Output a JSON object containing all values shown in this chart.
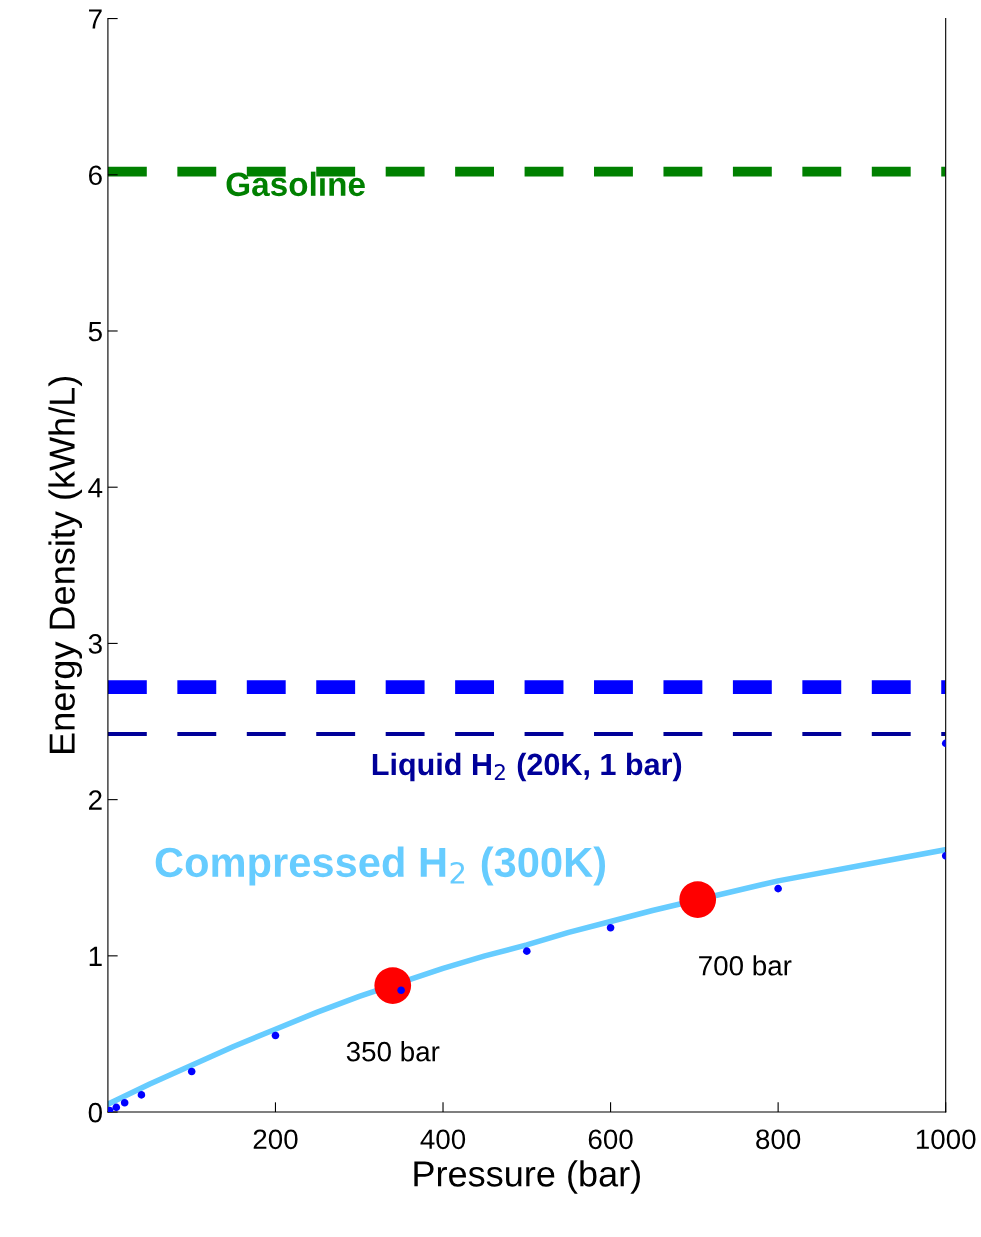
{
  "chart_data": {
    "type": "line",
    "xlabel": "Pressure (bar)",
    "ylabel": "Energy Density (kWh/L)",
    "xlim": [
      0,
      1000
    ],
    "xticks": [
      200,
      400,
      600,
      800,
      1000
    ],
    "ylim": [
      0,
      7
    ],
    "yticks": [
      0,
      1,
      2,
      3,
      4,
      5,
      6,
      7
    ],
    "grid": false,
    "legend": false,
    "series": [
      {
        "name": "Compressed H$_{2}$ (300K)",
        "color": "#66ccff",
        "marker": "none",
        "line_style": "solid",
        "x": [
          0,
          50,
          100,
          150,
          200,
          250,
          300,
          400,
          450,
          500,
          550,
          600,
          650,
          800,
          900,
          1000
        ],
        "values": [
          0.05,
          0.18,
          0.3,
          0.42,
          0.53,
          0.64,
          0.74,
          0.92,
          1.0,
          1.07,
          1.15,
          1.22,
          1.29,
          1.48,
          1.58,
          1.68
        ]
      },
      {
        "type": "scatter",
        "color": "#0000ff",
        "marker": "circle",
        "x": [
          2,
          10,
          20,
          40,
          100,
          200,
          350,
          500,
          600,
          800,
          1000,
          1000
        ],
        "values": [
          0.01,
          0.03,
          0.06,
          0.11,
          0.26,
          0.49,
          0.78,
          1.03,
          1.18,
          1.43,
          1.64,
          2.36
        ]
      },
      {
        "type": "scatter",
        "color": "#ff0000",
        "marker": "circle",
        "x": [
          340,
          704
        ],
        "values": [
          0.81,
          1.36
        ]
      }
    ],
    "ref_lines": [
      {
        "axis": "y",
        "value": 6.02,
        "label": "Gasoline",
        "color": "#008000",
        "line_style": "dashed"
      },
      {
        "axis": "y",
        "value": 2.72,
        "label": null,
        "color": "#0000ff",
        "line_style": "dashed"
      },
      {
        "axis": "y",
        "value": 2.42,
        "label": "Liquid H$_{2}$ (20K, 1 bar)",
        "color": "#000099",
        "line_style": "dashed"
      }
    ],
    "annotations": [
      {
        "text": "350 bar",
        "x": 340,
        "y": 0.81
      },
      {
        "text": "700 bar",
        "x": 704,
        "y": 1.36
      }
    ]
  }
}
